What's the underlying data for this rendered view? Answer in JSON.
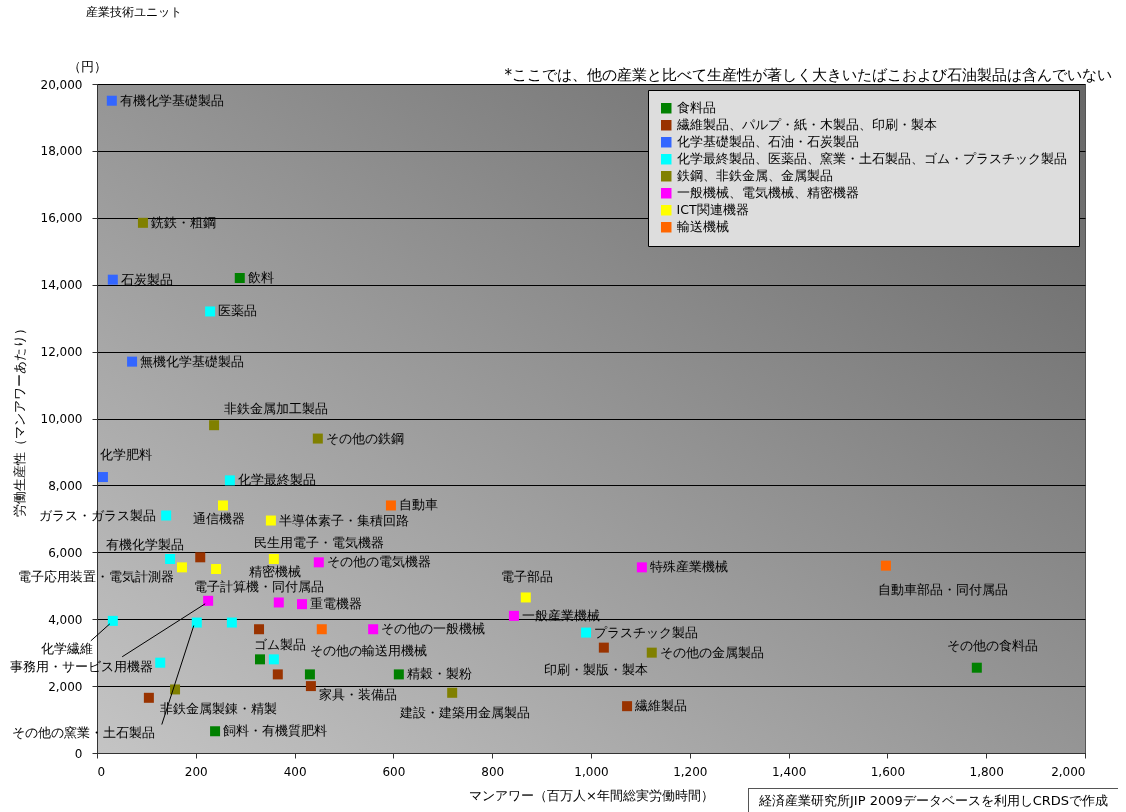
{
  "chart_data": {
    "type": "scatter",
    "xlabel": "マンアワー（百万人×年間総実労働時間）",
    "ylabel": "労働生産性（マンアワーあたり）",
    "annotations": [
      "産業技術ユニット",
      "（円）",
      "*ここでは、他の産業と比べて生産性が著しく大きいたばこおよび石油製品は含んでいない",
      "経済産業研究所JIP 2009データベースを利用しCRDSで作成"
    ],
    "xlim": [
      0,
      2000
    ],
    "xticks": [
      0,
      200,
      400,
      600,
      800,
      {
        "value": 1000,
        "label": "1,000"
      },
      {
        "value": 1200,
        "label": "1,200"
      },
      {
        "value": 1400,
        "label": "1,400"
      },
      {
        "value": 1600,
        "label": "1,600"
      },
      {
        "value": 1800,
        "label": "1,800"
      },
      {
        "value": 2000,
        "label": "2,000"
      }
    ],
    "ylim": [
      0,
      20000
    ],
    "yticks": [
      0,
      {
        "value": 2000,
        "label": "2,000"
      },
      {
        "value": 4000,
        "label": "4,000"
      },
      {
        "value": 6000,
        "label": "6,000"
      },
      {
        "value": 8000,
        "label": "8,000"
      },
      {
        "value": 10000,
        "label": "10,000"
      },
      {
        "value": 12000,
        "label": "12,000"
      },
      {
        "value": 14000,
        "label": "14,000"
      },
      {
        "value": 16000,
        "label": "16,000"
      },
      {
        "value": 18000,
        "label": "18,000"
      },
      {
        "value": 20000,
        "label": "20,000"
      }
    ],
    "grid": "y",
    "legend": "top right",
    "marker": "square",
    "series": [
      {
        "name": "食料品",
        "color": "#008000",
        "x": [
          289,
          239,
          611,
          1781,
          330,
          431
        ],
        "values": [
          14200,
          650,
          2350,
          2550,
          2800,
          2350
        ],
        "value_labels": [
          "飲料",
          "飼料・有機質肥料",
          "精穀・製粉",
          "その他の食料品",
          null,
          null
        ]
      },
      {
        "name": "繊維製品、パルプ・紙・木製品、印刷・製本",
        "color": "#993300",
        "x": [
          1073,
          1026,
          433,
          209,
          328,
          366,
          105
        ],
        "values": [
          1400,
          3150,
          2000,
          5850,
          3700,
          2350,
          1650
        ],
        "value_labels": [
          "繊維製品",
          "印刷・製版・製本",
          "家具・装備品",
          null,
          null,
          null,
          null
        ]
      },
      {
        "name": "化学基礎製品、石油・石炭製品",
        "color": "#3366ff",
        "x": [
          30,
          32,
          71,
          12
        ],
        "values": [
          19500,
          14150,
          11700,
          8250
        ],
        "value_labels": [
          "有機化学基礎製品",
          "石炭製品",
          "無機化学基礎製品",
          "化学肥料"
        ]
      },
      {
        "name": "化学最終製品、医薬品、窯業・土石製品、ゴム・プラスチック製品",
        "color": "#00ffff",
        "x": [
          229,
          269,
          140,
          148,
          32,
          202,
          273,
          128,
          358,
          990
        ],
        "values": [
          13200,
          8150,
          7100,
          5800,
          3950,
          3900,
          3900,
          2700,
          2800,
          3600
        ],
        "value_labels": [
          "医薬品",
          "化学最終製品",
          "ガラス・ガラス製品",
          "有機化学製品",
          "化学繊維",
          "その他の窯業・土石製品",
          null,
          null,
          "ゴム製品",
          "プラスチック製品"
        ]
      },
      {
        "name": "鉄鋼、非鉄金属、金属製品",
        "color": "#808000",
        "x": [
          93,
          237,
          447,
          158,
          719,
          1123
        ],
        "values": [
          15850,
          9800,
          9400,
          1900,
          1800,
          3000
        ],
        "value_labels": [
          "銑鉄・粗鋼",
          "非鉄金属加工製品",
          "その他の鉄鋼",
          "非鉄金属製錬・精製",
          "建設・建築用金属製品",
          "その他の金属製品"
        ]
      },
      {
        "name": "一般機械、電気機械、精密機器",
        "color": "#ff00ff",
        "x": [
          449,
          225,
          368,
          415,
          559,
          844,
          1103
        ],
        "values": [
          5700,
          4550,
          4500,
          4450,
          3700,
          4100,
          5550
        ],
        "value_labels": [
          "その他の電気機器",
          "事務用・サービス用機器",
          "精密機械",
          "重電機器",
          "その他の一般機械",
          "一般産業機械",
          "特殊産業機械"
        ]
      },
      {
        "name": "ICT関連機器",
        "color": "#ffff00",
        "x": [
          255,
          352,
          358,
          172,
          241,
          868
        ],
        "values": [
          7400,
          6950,
          5800,
          5550,
          5500,
          4650
        ],
        "value_labels": [
          "通信機器",
          "半導体素子・集積回路",
          "民生用電子・電気機器",
          "電子応用装置・電気計測器",
          "電子計算機・同付属品",
          "電子部品"
        ]
      },
      {
        "name": "輸送機械",
        "color": "#ff6600",
        "x": [
          595,
          455,
          1597
        ],
        "values": [
          7400,
          3700,
          5600
        ],
        "value_labels": [
          "自動車",
          "その他の輸送用機械",
          "自動車部品・同付属品"
        ]
      }
    ]
  }
}
